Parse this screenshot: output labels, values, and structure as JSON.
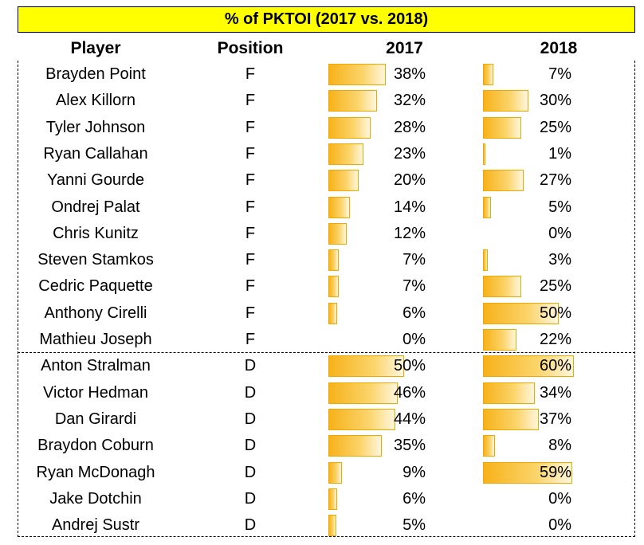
{
  "chart_data": {
    "type": "table",
    "title": "% of PKTOI (2017 vs. 2018)",
    "columns": [
      "Player",
      "Position",
      "2017",
      "2018"
    ],
    "bar_color": "#f7b21a",
    "rows": [
      {
        "player": "Brayden Point",
        "position": "F",
        "v2017": 38,
        "v2018": 7,
        "label2017": "38%",
        "label2018": "7%"
      },
      {
        "player": "Alex Killorn",
        "position": "F",
        "v2017": 32,
        "v2018": 30,
        "label2017": "32%",
        "label2018": "30%"
      },
      {
        "player": "Tyler Johnson",
        "position": "F",
        "v2017": 28,
        "v2018": 25,
        "label2017": "28%",
        "label2018": "25%"
      },
      {
        "player": "Ryan Callahan",
        "position": "F",
        "v2017": 23,
        "v2018": 1,
        "label2017": "23%",
        "label2018": "1%"
      },
      {
        "player": "Yanni Gourde",
        "position": "F",
        "v2017": 20,
        "v2018": 27,
        "label2017": "20%",
        "label2018": "27%"
      },
      {
        "player": "Ondrej Palat",
        "position": "F",
        "v2017": 14,
        "v2018": 5,
        "label2017": "14%",
        "label2018": "5%"
      },
      {
        "player": "Chris Kunitz",
        "position": "F",
        "v2017": 12,
        "v2018": 0,
        "label2017": "12%",
        "label2018": "0%"
      },
      {
        "player": "Steven Stamkos",
        "position": "F",
        "v2017": 7,
        "v2018": 3,
        "label2017": "7%",
        "label2018": "3%"
      },
      {
        "player": "Cedric Paquette",
        "position": "F",
        "v2017": 7,
        "v2018": 25,
        "label2017": "7%",
        "label2018": "25%"
      },
      {
        "player": "Anthony Cirelli",
        "position": "F",
        "v2017": 6,
        "v2018": 50,
        "label2017": "6%",
        "label2018": "50%"
      },
      {
        "player": "Mathieu Joseph",
        "position": "F",
        "v2017": 0,
        "v2018": 22,
        "label2017": "0%",
        "label2018": "22%"
      },
      {
        "player": "Anton Stralman",
        "position": "D",
        "v2017": 50,
        "v2018": 60,
        "label2017": "50%",
        "label2018": "60%"
      },
      {
        "player": "Victor Hedman",
        "position": "D",
        "v2017": 46,
        "v2018": 34,
        "label2017": "46%",
        "label2018": "34%"
      },
      {
        "player": "Dan Girardi",
        "position": "D",
        "v2017": 44,
        "v2018": 37,
        "label2017": "44%",
        "label2018": "37%"
      },
      {
        "player": "Braydon Coburn",
        "position": "D",
        "v2017": 35,
        "v2018": 8,
        "label2017": "35%",
        "label2018": "8%"
      },
      {
        "player": "Ryan McDonagh",
        "position": "D",
        "v2017": 9,
        "v2018": 59,
        "label2017": "9%",
        "label2018": "59%"
      },
      {
        "player": "Jake Dotchin",
        "position": "D",
        "v2017": 6,
        "v2018": 0,
        "label2017": "6%",
        "label2018": "0%"
      },
      {
        "player": "Andrej Sustr",
        "position": "D",
        "v2017": 5,
        "v2018": 0,
        "label2017": "5%",
        "label2018": "0%"
      }
    ]
  }
}
